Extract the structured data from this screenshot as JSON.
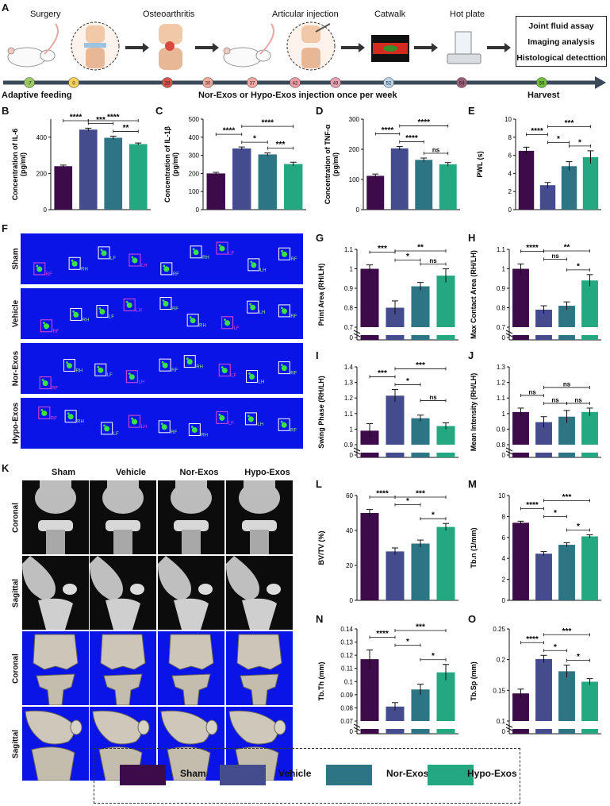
{
  "colors": {
    "sham": "#3d0a4a",
    "vehicle": "#454c8e",
    "norexos": "#2d7485",
    "hypoexos": "#23a882",
    "blue_bg": "#0a14e6"
  },
  "timeline": {
    "steps": [
      "Surgery",
      "Osteoarthritis",
      "Articular injection",
      "Catwalk",
      "Hot plate"
    ],
    "assays": [
      "Joint fluid assay",
      "Imaging analysis",
      "Histological detecttion"
    ],
    "days": [
      {
        "label": "-7",
        "color": "#9ccb63"
      },
      {
        "label": "0",
        "color": "#f2d05a"
      },
      {
        "label": "28",
        "color": "#d9514b"
      },
      {
        "label": "30",
        "color": "#f6a99a"
      },
      {
        "label": "37",
        "color": "#f7a8a0"
      },
      {
        "label": "42",
        "color": "#f19aa3"
      },
      {
        "label": "49",
        "color": "#e9a0b3"
      },
      {
        "label": "52",
        "color": "#b9d3ea"
      },
      {
        "label": "54",
        "color": "#9a5d78"
      },
      {
        "label": "56",
        "color": "#6fbf3a"
      }
    ],
    "left_caption": "Adaptive feeding",
    "mid_caption": "Nor-Exos or Hypo-Exos injection once per week",
    "right_caption": "Harvest"
  },
  "panel_letters": [
    "A",
    "B",
    "C",
    "D",
    "E",
    "F",
    "G",
    "H",
    "I",
    "J",
    "K",
    "L",
    "M",
    "N",
    "O"
  ],
  "groups": [
    "Sham",
    "Vehicle",
    "Nor-Exos",
    "Hypo-Exos"
  ],
  "gait": {
    "rows": [
      "Sham",
      "Vehicle",
      "Nor-Exos",
      "Hypo-Exos"
    ],
    "paw_labels": [
      "RF",
      "RH",
      "LF",
      "LH"
    ]
  },
  "micro": {
    "columns": [
      "Sham",
      "Vehicle",
      "Nor-Exos",
      "Hypo-Exos"
    ],
    "rows": [
      "Coronal",
      "Sagittal",
      "Coronal",
      "Sagittal"
    ]
  },
  "chart_data": [
    {
      "id": "B",
      "type": "bar",
      "ylabel": "Concentration of IL-6\n(pg/ml)",
      "ylim": [
        0,
        500
      ],
      "yticks": [
        0,
        200,
        400
      ],
      "values": [
        240,
        442,
        397,
        362
      ],
      "errors": [
        6,
        8,
        9,
        6
      ],
      "sig": [
        {
          "a": 0,
          "b": 1,
          "t": "****"
        },
        {
          "a": 1,
          "b": 2,
          "t": "***"
        },
        {
          "a": 1,
          "b": 3,
          "t": "****"
        },
        {
          "a": 2,
          "b": 3,
          "t": "**"
        }
      ]
    },
    {
      "id": "C",
      "type": "bar",
      "ylabel": "Concentration of IL-1β\n(pg/ml)",
      "ylim": [
        0,
        500
      ],
      "yticks": [
        0,
        100,
        200,
        300,
        400,
        500
      ],
      "values": [
        200,
        338,
        305,
        252
      ],
      "errors": [
        6,
        8,
        8,
        10
      ],
      "sig": [
        {
          "a": 0,
          "b": 1,
          "t": "****"
        },
        {
          "a": 1,
          "b": 2,
          "t": "*"
        },
        {
          "a": 1,
          "b": 3,
          "t": "****"
        },
        {
          "a": 2,
          "b": 3,
          "t": "***"
        }
      ]
    },
    {
      "id": "D",
      "type": "bar",
      "ylabel": "Concentration of TNF-α\n(pg/ml)",
      "ylim": [
        0,
        300
      ],
      "yticks": [
        0,
        100,
        200,
        300
      ],
      "values": [
        112,
        203,
        165,
        150
      ],
      "errors": [
        6,
        6,
        6,
        6
      ],
      "sig": [
        {
          "a": 0,
          "b": 1,
          "t": "****"
        },
        {
          "a": 1,
          "b": 2,
          "t": "****"
        },
        {
          "a": 1,
          "b": 3,
          "t": "****"
        },
        {
          "a": 2,
          "b": 3,
          "t": "ns"
        }
      ]
    },
    {
      "id": "E",
      "type": "bar",
      "ylabel": "PWL (s)",
      "ylim": [
        0,
        10
      ],
      "yticks": [
        0,
        2,
        4,
        6,
        8,
        10
      ],
      "values": [
        6.5,
        2.7,
        4.8,
        5.8
      ],
      "errors": [
        0.4,
        0.3,
        0.5,
        0.7
      ],
      "sig": [
        {
          "a": 0,
          "b": 1,
          "t": "****"
        },
        {
          "a": 1,
          "b": 2,
          "t": "*"
        },
        {
          "a": 1,
          "b": 3,
          "t": "***"
        },
        {
          "a": 2,
          "b": 3,
          "t": "*"
        }
      ]
    },
    {
      "id": "G",
      "type": "bar",
      "ylabel": "Print Area (RH/LH)",
      "ylim": [
        0.7,
        1.1
      ],
      "broken": true,
      "yticks": [
        0.7,
        0.8,
        0.9,
        1.0,
        1.1
      ],
      "values": [
        1.0,
        0.8,
        0.91,
        0.965
      ],
      "errors": [
        0.02,
        0.035,
        0.02,
        0.035
      ],
      "sig": [
        {
          "a": 0,
          "b": 1,
          "t": "***"
        },
        {
          "a": 1,
          "b": 2,
          "t": "*"
        },
        {
          "a": 1,
          "b": 3,
          "t": "**"
        },
        {
          "a": 2,
          "b": 3,
          "t": "ns"
        }
      ]
    },
    {
      "id": "H",
      "type": "bar",
      "ylabel": "Max Contact Area (RH/LH)",
      "ylim": [
        0.7,
        1.1
      ],
      "broken": true,
      "yticks": [
        0.7,
        0.8,
        0.9,
        1.0,
        1.1
      ],
      "values": [
        1.0,
        0.79,
        0.81,
        0.94
      ],
      "errors": [
        0.025,
        0.02,
        0.02,
        0.03
      ],
      "sig": [
        {
          "a": 0,
          "b": 1,
          "t": "****"
        },
        {
          "a": 1,
          "b": 2,
          "t": "ns"
        },
        {
          "a": 1,
          "b": 3,
          "t": "**"
        },
        {
          "a": 2,
          "b": 3,
          "t": "*"
        }
      ]
    },
    {
      "id": "I",
      "type": "bar",
      "ylabel": "Swing Phase (RH/LH)",
      "ylim": [
        0.9,
        1.4
      ],
      "broken": true,
      "yticks": [
        0.9,
        1.0,
        1.1,
        1.2,
        1.3,
        1.4
      ],
      "values": [
        0.99,
        1.215,
        1.07,
        1.02
      ],
      "errors": [
        0.045,
        0.04,
        0.02,
        0.02
      ],
      "sig": [
        {
          "a": 0,
          "b": 1,
          "t": "***"
        },
        {
          "a": 1,
          "b": 2,
          "t": "*"
        },
        {
          "a": 1,
          "b": 3,
          "t": "***"
        },
        {
          "a": 2,
          "b": 3,
          "t": "ns"
        }
      ]
    },
    {
      "id": "J",
      "type": "bar",
      "ylabel": "Mean Intensity (RH/LH)",
      "ylim": [
        0.8,
        1.3
      ],
      "broken": true,
      "yticks": [
        0.8,
        0.9,
        1.0,
        1.1,
        1.2,
        1.3
      ],
      "values": [
        1.01,
        0.945,
        0.98,
        1.01
      ],
      "errors": [
        0.025,
        0.035,
        0.04,
        0.025
      ],
      "sig": [
        {
          "a": 0,
          "b": 1,
          "t": "ns"
        },
        {
          "a": 1,
          "b": 2,
          "t": "ns"
        },
        {
          "a": 1,
          "b": 3,
          "t": "ns"
        },
        {
          "a": 2,
          "b": 3,
          "t": "ns"
        }
      ]
    },
    {
      "id": "L",
      "type": "bar",
      "ylabel": "BV/TV (%)",
      "ylim": [
        0,
        60
      ],
      "yticks": [
        0,
        20,
        40,
        60
      ],
      "values": [
        50,
        28,
        32.5,
        42
      ],
      "errors": [
        2,
        2,
        2,
        2
      ],
      "sig": [
        {
          "a": 0,
          "b": 1,
          "t": "****"
        },
        {
          "a": 1,
          "b": 2,
          "t": "*"
        },
        {
          "a": 1,
          "b": 3,
          "t": "***"
        },
        {
          "a": 2,
          "b": 3,
          "t": "*"
        }
      ]
    },
    {
      "id": "M",
      "type": "bar",
      "ylabel": "Tb.n (1/mm)",
      "ylim": [
        0,
        10
      ],
      "yticks": [
        0,
        2,
        4,
        6,
        8,
        10
      ],
      "values": [
        7.4,
        4.45,
        5.3,
        6.1
      ],
      "errors": [
        0.15,
        0.2,
        0.2,
        0.15
      ],
      "sig": [
        {
          "a": 0,
          "b": 1,
          "t": "****"
        },
        {
          "a": 1,
          "b": 2,
          "t": "*"
        },
        {
          "a": 1,
          "b": 3,
          "t": "***"
        },
        {
          "a": 2,
          "b": 3,
          "t": "*"
        }
      ]
    },
    {
      "id": "N",
      "type": "bar",
      "ylabel": "Tb.Th (mm)",
      "ylim": [
        0.07,
        0.14
      ],
      "broken": true,
      "yticks": [
        0.07,
        0.08,
        0.09,
        0.1,
        0.11,
        0.12,
        0.13,
        0.14
      ],
      "values": [
        0.117,
        0.081,
        0.094,
        0.107
      ],
      "errors": [
        0.007,
        0.003,
        0.004,
        0.006
      ],
      "sig": [
        {
          "a": 0,
          "b": 1,
          "t": "****"
        },
        {
          "a": 1,
          "b": 2,
          "t": "*"
        },
        {
          "a": 1,
          "b": 3,
          "t": "***"
        },
        {
          "a": 2,
          "b": 3,
          "t": "*"
        }
      ]
    },
    {
      "id": "O",
      "type": "bar",
      "ylabel": "Tb.Sp (mm)",
      "ylim": [
        0.1,
        0.25
      ],
      "broken": true,
      "yticks": [
        0.1,
        0.15,
        0.2,
        0.25
      ],
      "values": [
        0.145,
        0.201,
        0.181,
        0.164
      ],
      "errors": [
        0.007,
        0.006,
        0.01,
        0.005
      ],
      "sig": [
        {
          "a": 0,
          "b": 1,
          "t": "****"
        },
        {
          "a": 1,
          "b": 2,
          "t": "*"
        },
        {
          "a": 1,
          "b": 3,
          "t": "***"
        },
        {
          "a": 2,
          "b": 3,
          "t": "*"
        }
      ]
    }
  ],
  "legend": [
    "Sham",
    "Vehicle",
    "Nor-Exos",
    "Hypo-Exos"
  ]
}
